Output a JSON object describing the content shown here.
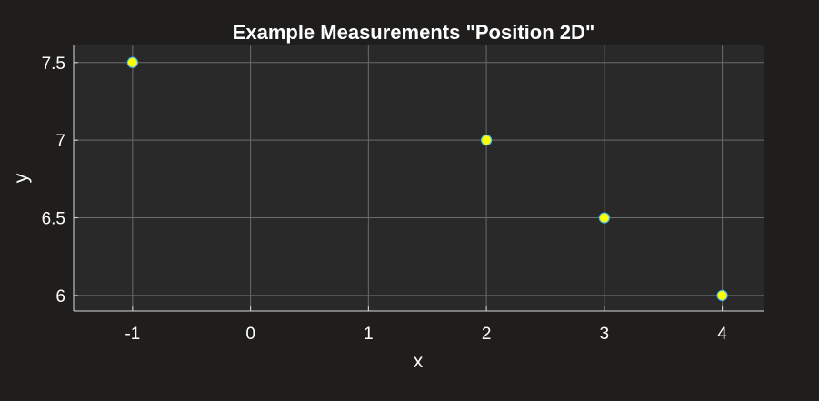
{
  "chart_data": {
    "type": "scatter",
    "title": "Example Measurements \"Position 2D\"",
    "xlabel": "x",
    "ylabel": "y",
    "xlim": [
      -1.5,
      4.35
    ],
    "ylim": [
      5.9,
      7.61
    ],
    "x_ticks": [
      -1,
      0,
      1,
      2,
      3,
      4
    ],
    "x_tick_labels": [
      "-1",
      "0",
      "1",
      "2",
      "3",
      "4"
    ],
    "y_ticks": [
      6,
      6.5,
      7,
      7.5
    ],
    "y_tick_labels": [
      "6",
      "6.5",
      "7",
      "7.5"
    ],
    "grid": true,
    "series": [
      {
        "x": [
          -1,
          2,
          3,
          4
        ],
        "y": [
          7.5,
          7,
          6.5,
          6
        ],
        "marker": "circle",
        "marker_fill": "#ffff00",
        "marker_edge": "#4dbeee"
      }
    ]
  },
  "colors": {
    "figure_background": "#1f1e1c",
    "axes_background": "#292929",
    "grid": "#6b6b6b",
    "axis_line": "#d9d9d9",
    "text": "#ffffff"
  }
}
